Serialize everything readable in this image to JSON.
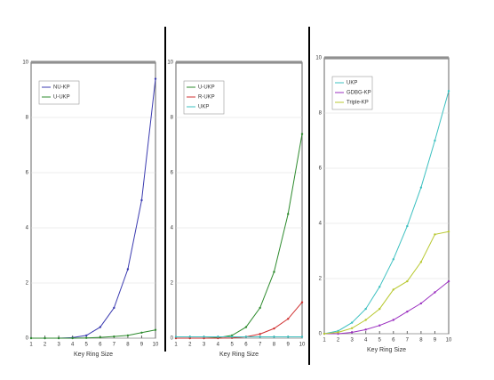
{
  "chart_data": [
    {
      "type": "line",
      "x_label": "Key Ring Size",
      "legend": "upper left",
      "grid": true,
      "x": [
        1,
        2,
        3,
        4,
        5,
        6,
        7,
        8,
        9,
        10
      ],
      "xlim": [
        1,
        10
      ],
      "xticks": [
        1,
        2,
        3,
        4,
        5,
        6,
        7,
        8,
        9,
        10
      ],
      "ylim": [
        0,
        10
      ],
      "yticks": [
        0,
        2,
        4,
        6,
        8,
        10
      ],
      "series": [
        {
          "name": "NU-KP",
          "color": "#3b3bb0",
          "values": [
            0,
            0,
            0,
            0.02,
            0.1,
            0.4,
            1.1,
            2.5,
            5,
            9.4
          ]
        },
        {
          "name": "U-UKP",
          "color": "#2e8b2e",
          "values": [
            0,
            0,
            0,
            0,
            0.01,
            0.03,
            0.06,
            0.1,
            0.2,
            0.3
          ]
        }
      ]
    },
    {
      "type": "line",
      "x_label": "Key Ring Size",
      "legend": "upper left",
      "grid": true,
      "x": [
        1,
        2,
        3,
        4,
        5,
        6,
        7,
        8,
        9,
        10
      ],
      "xlim": [
        1,
        10
      ],
      "xticks": [
        1,
        2,
        3,
        4,
        5,
        6,
        7,
        8,
        9,
        10
      ],
      "ylim": [
        0,
        10
      ],
      "yticks": [
        0,
        2,
        4,
        6,
        8,
        10
      ],
      "series": [
        {
          "name": "U-UKP",
          "color": "#2e8b2e",
          "values": [
            0,
            0,
            0,
            0.02,
            0.1,
            0.4,
            1.1,
            2.4,
            4.5,
            7.4
          ]
        },
        {
          "name": "R-UKP",
          "color": "#d03030",
          "values": [
            0,
            0,
            0,
            0,
            0.01,
            0.05,
            0.15,
            0.35,
            0.7,
            1.3
          ]
        },
        {
          "name": "UKP",
          "color": "#3cc0c0",
          "values": [
            0.05,
            0.05,
            0.05,
            0.05,
            0.05,
            0.05,
            0.05,
            0.05,
            0.05,
            0.05
          ]
        }
      ]
    },
    {
      "type": "line",
      "x_label": "Key Ring Size",
      "legend": "upper left",
      "grid": true,
      "x": [
        1,
        2,
        3,
        4,
        5,
        6,
        7,
        8,
        9,
        10
      ],
      "xlim": [
        1,
        10
      ],
      "xticks": [
        1,
        2,
        3,
        4,
        5,
        6,
        7,
        8,
        9,
        10
      ],
      "ylim": [
        0,
        10
      ],
      "yticks": [
        0,
        2,
        4,
        6,
        8,
        10
      ],
      "series": [
        {
          "name": "UKP",
          "color": "#3cc0c0",
          "values": [
            0,
            0.1,
            0.4,
            0.9,
            1.7,
            2.7,
            3.9,
            5.3,
            7,
            8.8
          ]
        },
        {
          "name": "GDBG-KP",
          "color": "#9b30c0",
          "values": [
            0,
            0,
            0.05,
            0.15,
            0.3,
            0.5,
            0.8,
            1.1,
            1.5,
            1.9
          ]
        },
        {
          "name": "Triple-KP",
          "color": "#b8c830",
          "values": [
            0,
            0.05,
            0.2,
            0.5,
            0.9,
            1.6,
            1.9,
            2.6,
            3.6,
            3.7
          ]
        }
      ]
    }
  ]
}
